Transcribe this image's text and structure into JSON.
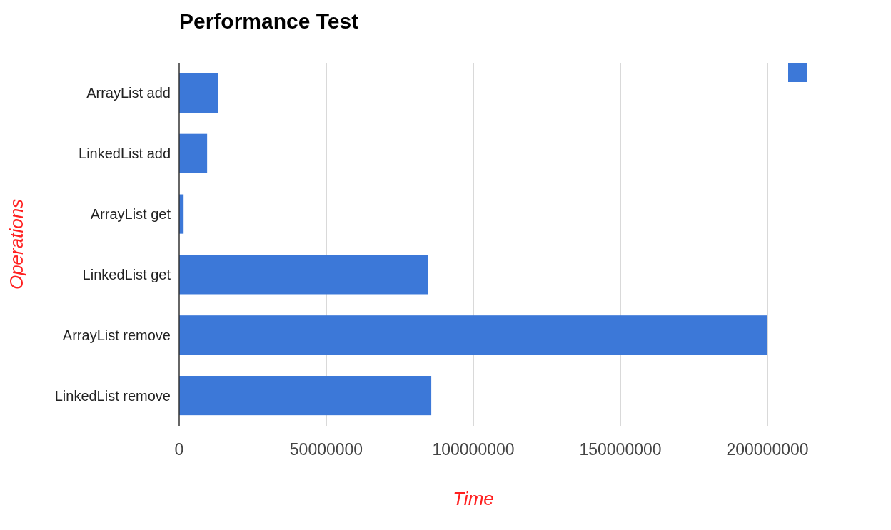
{
  "chart_data": {
    "type": "bar",
    "orientation": "horizontal",
    "title": "Performance Test",
    "xlabel": "Time",
    "ylabel": "Operations",
    "categories": [
      "ArrayList add",
      "LinkedList add",
      "ArrayList get",
      "LinkedList get",
      "ArrayList remove",
      "LinkedList remove"
    ],
    "series": [
      {
        "color": "#3c78d8",
        "values": [
          13300000,
          9500000,
          1500000,
          84700000,
          200000000,
          85700000
        ]
      }
    ],
    "xlim": [
      0,
      200000000
    ],
    "xticks": [
      0,
      50000000,
      100000000,
      150000000,
      200000000
    ],
    "grid": "x"
  }
}
